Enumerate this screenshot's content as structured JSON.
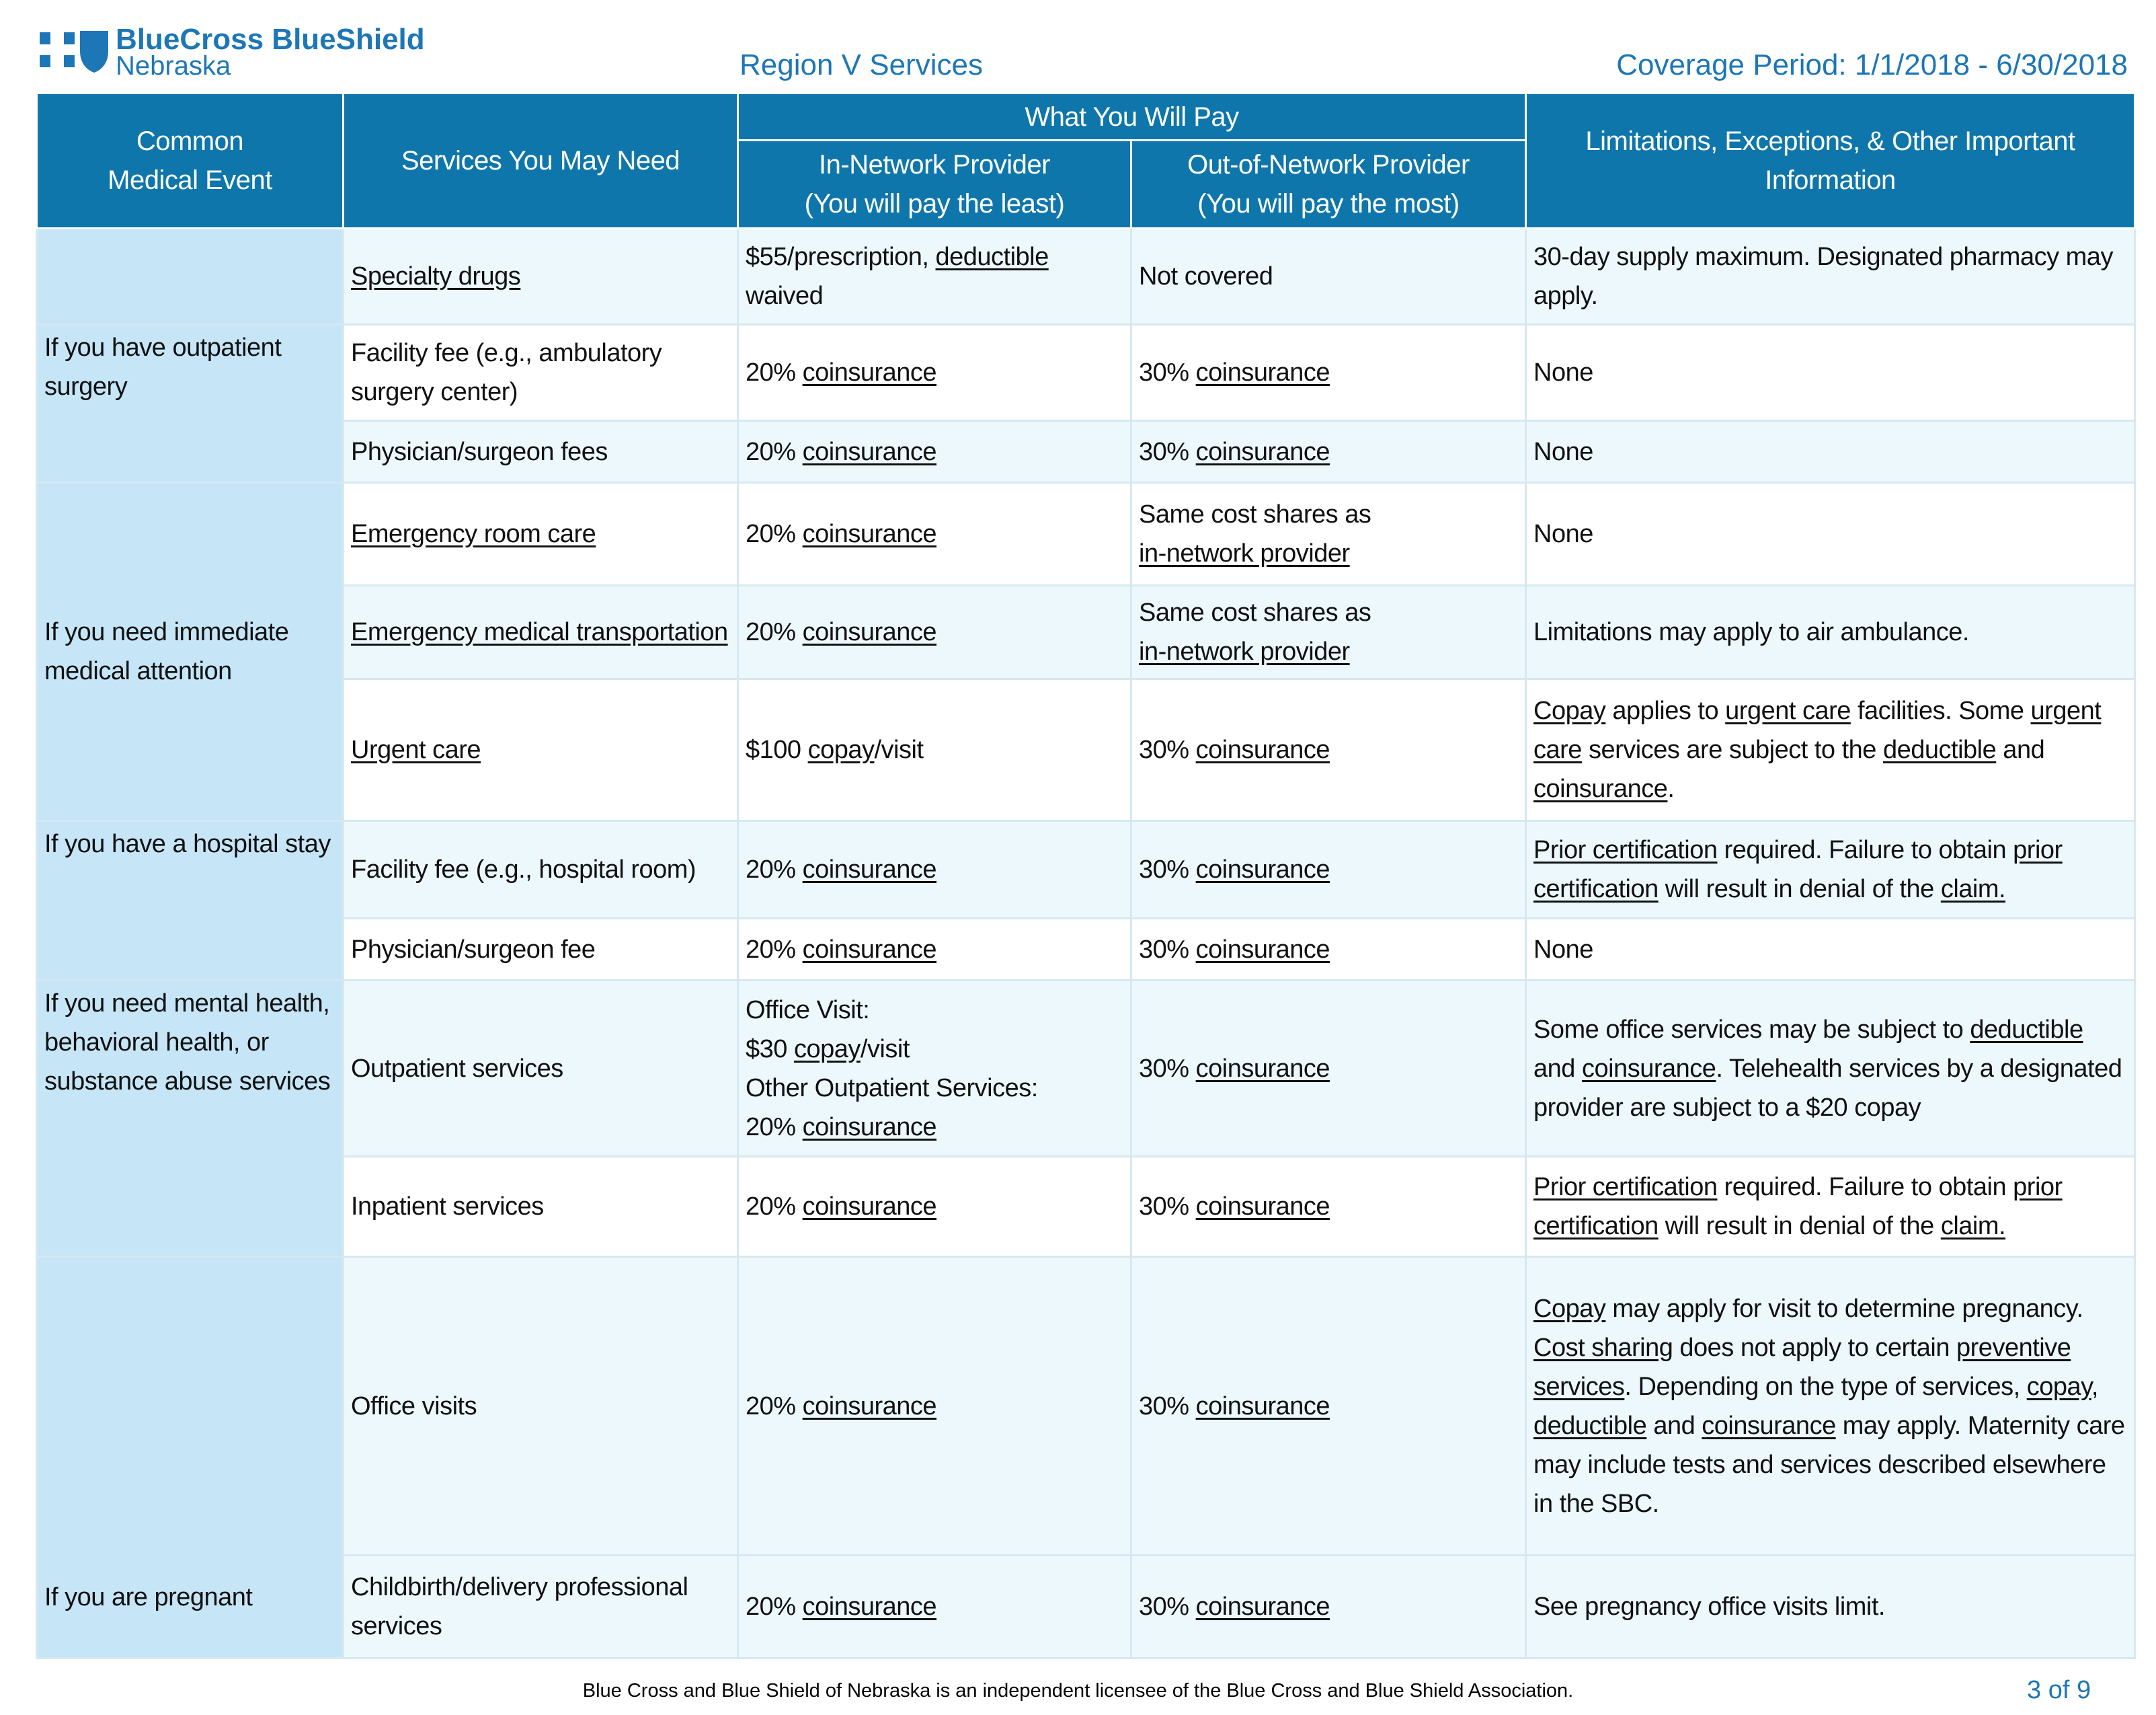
{
  "header": {
    "logo_line1": "BlueCross BlueShield",
    "logo_line2": "Nebraska",
    "region": "Region V Services",
    "coverage_period": "Coverage Period: 1/1/2018 - 6/30/2018"
  },
  "table": {
    "head": {
      "event": [
        "Common",
        "Medical Event"
      ],
      "services": "Services You May Need",
      "what_you_pay": "What You Will Pay",
      "in_network": [
        "In-Network Provider",
        "(You will pay the least)"
      ],
      "out_network": [
        "Out-of-Network Provider",
        "(You will pay the most)"
      ],
      "limits": "Limitations, Exceptions, & Other Important Information"
    },
    "groups": [
      {
        "event": null,
        "rows": [
          [
            [
              [
                {
                  "u": "Specialty drugs"
                }
              ]
            ],
            [
              [
                "$55/prescription, ",
                {
                  "u": "deductible"
                },
                " waived"
              ]
            ],
            [
              [
                "Not covered"
              ]
            ],
            [
              [
                "30-day supply maximum. Designated pharmacy may apply."
              ]
            ]
          ]
        ]
      },
      {
        "event": "If you have outpatient surgery",
        "rows": [
          [
            [
              [
                "Facility fee (e.g., ambulatory surgery center)"
              ]
            ],
            [
              [
                "20% ",
                {
                  "u": "coinsurance"
                }
              ]
            ],
            [
              [
                "30% ",
                {
                  "u": "coinsurance"
                }
              ]
            ],
            [
              [
                "None"
              ]
            ]
          ],
          [
            [
              [
                "Physician/surgeon fees"
              ]
            ],
            [
              [
                "20% ",
                {
                  "u": "coinsurance"
                }
              ]
            ],
            [
              [
                "30% ",
                {
                  "u": "coinsurance"
                }
              ]
            ],
            [
              [
                "None"
              ]
            ]
          ]
        ]
      },
      {
        "event": "If you need immediate medical attention",
        "rows": [
          [
            [
              [
                {
                  "u": "Emergency room care"
                }
              ]
            ],
            [
              [
                "20% ",
                {
                  "u": "coinsurance"
                }
              ]
            ],
            [
              [
                "Same cost shares as"
              ],
              [
                {
                  "u": "in-network provider"
                }
              ]
            ],
            [
              [
                "None"
              ]
            ]
          ],
          [
            [
              [
                {
                  "u": "Emergency medical transportation"
                }
              ]
            ],
            [
              [
                "20% ",
                {
                  "u": "coinsurance"
                }
              ]
            ],
            [
              [
                "Same cost shares as"
              ],
              [
                {
                  "u": "in-network provider"
                }
              ]
            ],
            [
              [
                "Limitations may apply to air ambulance."
              ]
            ]
          ],
          [
            [
              [
                {
                  "u": "Urgent care"
                }
              ]
            ],
            [
              [
                "$100 ",
                {
                  "u": "copay"
                },
                "/visit"
              ]
            ],
            [
              [
                "30% ",
                {
                  "u": "coinsurance"
                }
              ]
            ],
            [
              [
                {
                  "u": "Copay"
                },
                " applies to ",
                {
                  "u": "urgent care"
                },
                " facilities. Some ",
                {
                  "u": "urgent care"
                },
                " services are subject to the ",
                {
                  "u": "deductible"
                },
                " and ",
                {
                  "u": "coinsurance"
                },
                "."
              ]
            ]
          ]
        ]
      },
      {
        "event": "If you have a hospital stay",
        "rows": [
          [
            [
              [
                "Facility fee (e.g., hospital room)"
              ]
            ],
            [
              [
                "20% ",
                {
                  "u": "coinsurance"
                }
              ]
            ],
            [
              [
                "30% ",
                {
                  "u": "coinsurance"
                }
              ]
            ],
            [
              [
                {
                  "u": "Prior certification"
                },
                " required. Failure to obtain ",
                {
                  "u": "prior certification"
                },
                " will result in denial of the ",
                {
                  "u": "claim."
                }
              ]
            ]
          ],
          [
            [
              [
                "Physician/surgeon fee"
              ]
            ],
            [
              [
                "20% ",
                {
                  "u": "coinsurance"
                }
              ]
            ],
            [
              [
                "30% ",
                {
                  "u": "coinsurance"
                }
              ]
            ],
            [
              [
                "None"
              ]
            ]
          ]
        ]
      },
      {
        "event": "If you need mental health, behavioral health, or substance abuse services",
        "rows": [
          [
            [
              [
                "Outpatient services"
              ]
            ],
            [
              [
                "Office Visit:"
              ],
              [
                "$30 ",
                {
                  "u": "copay"
                },
                "/visit"
              ],
              [
                "Other Outpatient Services:"
              ],
              [
                "20% ",
                {
                  "u": "coinsurance"
                }
              ]
            ],
            [
              [
                "30% ",
                {
                  "u": "coinsurance"
                }
              ]
            ],
            [
              [
                "Some office services may be subject to ",
                {
                  "u": "deductible"
                },
                " and ",
                {
                  "u": "coinsurance"
                },
                ". Telehealth services by a designated provider are subject to a $20 copay"
              ]
            ]
          ],
          [
            [
              [
                "Inpatient services"
              ]
            ],
            [
              [
                "20% ",
                {
                  "u": "coinsurance"
                }
              ]
            ],
            [
              [
                "30% ",
                {
                  "u": "coinsurance"
                }
              ]
            ],
            [
              [
                {
                  "u": "Prior certification"
                },
                " required. Failure to obtain ",
                {
                  "u": "prior certification"
                },
                " will result in denial of the ",
                {
                  "u": "claim."
                }
              ]
            ]
          ]
        ]
      },
      {
        "event": "If you are pregnant",
        "rows": [
          [
            [
              [
                "Office visits"
              ]
            ],
            [
              [
                "20% ",
                {
                  "u": "coinsurance"
                }
              ]
            ],
            [
              [
                "30% ",
                {
                  "u": "coinsurance"
                }
              ]
            ],
            [
              [
                {
                  "u": "Copay"
                },
                " may apply for visit to determine pregnancy. ",
                {
                  "u": "Cost sharing"
                },
                " does not apply to certain ",
                {
                  "u": "preventive services"
                },
                ". Depending on the type of services, ",
                {
                  "u": "copay"
                },
                ", ",
                {
                  "u": "deductible"
                },
                " and ",
                {
                  "u": "coinsurance"
                },
                " may apply. Maternity care may include tests and services described elsewhere in the SBC."
              ]
            ]
          ],
          [
            [
              [
                "Childbirth/delivery professional services"
              ]
            ],
            [
              [
                "20% ",
                {
                  "u": "coinsurance"
                }
              ]
            ],
            [
              [
                "30% ",
                {
                  "u": "coinsurance"
                }
              ]
            ],
            [
              [
                "See pregnancy office visits limit."
              ]
            ]
          ]
        ]
      }
    ]
  },
  "footer": {
    "note": "Blue Cross and Blue Shield of Nebraska is an independent licensee of the Blue Cross and Blue Shield Association.",
    "page": "3 of 9"
  }
}
